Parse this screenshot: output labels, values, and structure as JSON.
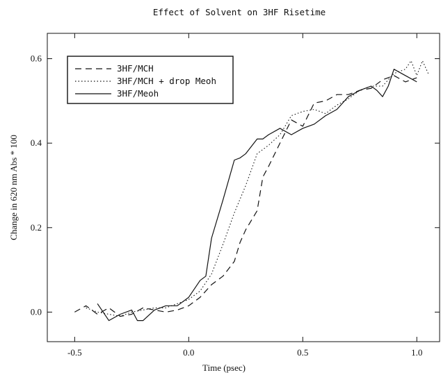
{
  "chart_data": {
    "type": "line",
    "title": "Effect of Solvent on 3HF Risetime",
    "xlabel": "Time (psec)",
    "ylabel": "Change in 620 nm Abs * 100",
    "xlim": [
      -0.62,
      1.1
    ],
    "ylim": [
      -0.07,
      0.66
    ],
    "xticks": [
      -0.5,
      0.0,
      0.5,
      1.0
    ],
    "xtick_labels": [
      "-0.5",
      "0.0",
      "0.5",
      "1.0"
    ],
    "yticks": [
      0.0,
      0.2,
      0.4,
      0.6
    ],
    "ytick_labels": [
      "0.0",
      "0.2",
      "0.4",
      "0.6"
    ],
    "grid": false,
    "legend_position": "top-left",
    "series": [
      {
        "name": "3HF/MCH",
        "dash": "dashed",
        "x": [
          -0.5,
          -0.45,
          -0.4,
          -0.35,
          -0.3,
          -0.25,
          -0.2,
          -0.15,
          -0.1,
          -0.05,
          0.0,
          0.05,
          0.1,
          0.15,
          0.2,
          0.225,
          0.25,
          0.3,
          0.325,
          0.35,
          0.4,
          0.45,
          0.5,
          0.55,
          0.6,
          0.65,
          0.7,
          0.75,
          0.8,
          0.85,
          0.9,
          0.95,
          1.0
        ],
        "y": [
          0.0,
          0.015,
          -0.005,
          0.01,
          -0.01,
          -0.005,
          0.01,
          0.005,
          0.0,
          0.005,
          0.015,
          0.035,
          0.065,
          0.085,
          0.12,
          0.165,
          0.195,
          0.24,
          0.32,
          0.345,
          0.4,
          0.455,
          0.44,
          0.495,
          0.5,
          0.515,
          0.515,
          0.525,
          0.53,
          0.55,
          0.56,
          0.545,
          0.555
        ]
      },
      {
        "name": "3HF/MCH + drop Meoh",
        "dash": "dotted",
        "x": [
          -0.45,
          -0.4,
          -0.35,
          -0.3,
          -0.25,
          -0.2,
          -0.15,
          -0.1,
          -0.05,
          0.0,
          0.05,
          0.1,
          0.15,
          0.2,
          0.25,
          0.3,
          0.35,
          0.4,
          0.45,
          0.5,
          0.55,
          0.6,
          0.65,
          0.7,
          0.75,
          0.8,
          0.85,
          0.9,
          0.95,
          0.975,
          1.0,
          1.025,
          1.05
        ],
        "y": [
          0.01,
          0.0,
          -0.005,
          -0.01,
          0.0,
          0.005,
          0.01,
          0.01,
          0.02,
          0.03,
          0.05,
          0.09,
          0.16,
          0.235,
          0.3,
          0.375,
          0.395,
          0.42,
          0.465,
          0.475,
          0.48,
          0.47,
          0.49,
          0.505,
          0.525,
          0.535,
          0.535,
          0.565,
          0.575,
          0.595,
          0.56,
          0.595,
          0.565
        ]
      },
      {
        "name": "3HF/Meoh",
        "dash": "solid",
        "x": [
          -0.4,
          -0.35,
          -0.3,
          -0.25,
          -0.225,
          -0.2,
          -0.15,
          -0.1,
          -0.05,
          0.0,
          0.05,
          0.075,
          0.1,
          0.15,
          0.2,
          0.225,
          0.25,
          0.3,
          0.325,
          0.35,
          0.4,
          0.45,
          0.5,
          0.55,
          0.6,
          0.65,
          0.7,
          0.75,
          0.8,
          0.825,
          0.85,
          0.875,
          0.9,
          0.95,
          1.0
        ],
        "y": [
          0.02,
          -0.02,
          -0.005,
          0.005,
          -0.02,
          -0.02,
          0.005,
          0.015,
          0.015,
          0.035,
          0.075,
          0.085,
          0.175,
          0.265,
          0.36,
          0.365,
          0.375,
          0.41,
          0.41,
          0.42,
          0.435,
          0.42,
          0.435,
          0.445,
          0.465,
          0.48,
          0.51,
          0.525,
          0.535,
          0.525,
          0.51,
          0.535,
          0.575,
          0.56,
          0.545
        ]
      }
    ]
  }
}
